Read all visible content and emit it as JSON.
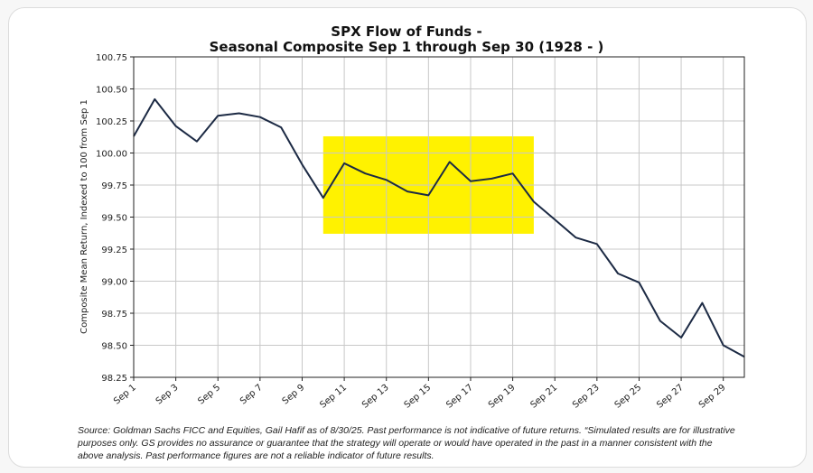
{
  "chart_data": {
    "type": "line",
    "title_line1": "SPX Flow of Funds -",
    "title_line2": "Seasonal Composite Sep 1 through Sep 30 (1928 - )",
    "ylabel": "Composite Mean Return, Indexed to 100 from Sep 1",
    "xlabel": "",
    "ylim": [
      98.25,
      100.75
    ],
    "yticks": [
      "98.25",
      "98.50",
      "98.75",
      "99.00",
      "99.25",
      "99.50",
      "99.75",
      "100.00",
      "100.25",
      "100.50",
      "100.75"
    ],
    "xticks": [
      "Sep 1",
      "Sep 3",
      "Sep 5",
      "Sep 7",
      "Sep 9",
      "Sep 11",
      "Sep 13",
      "Sep 15",
      "Sep 17",
      "Sep 19",
      "Sep 21",
      "Sep 23",
      "Sep 25",
      "Sep 27",
      "Sep 29"
    ],
    "grid": true,
    "line_color": "#1c2a44",
    "highlight": {
      "color": "#fff200",
      "x_start": 10,
      "x_end": 20,
      "y_start": 99.37,
      "y_end": 100.13
    },
    "series": [
      {
        "x": [
          1,
          2,
          3,
          4,
          5,
          6,
          7,
          8,
          9,
          10,
          11,
          12,
          13,
          14,
          15,
          16,
          17,
          18,
          19,
          20,
          21,
          22,
          23,
          24,
          25,
          26,
          27,
          28,
          29,
          30
        ],
        "values": [
          100.13,
          100.42,
          100.21,
          100.09,
          100.29,
          100.31,
          100.28,
          100.2,
          99.91,
          99.65,
          99.92,
          99.84,
          99.79,
          99.7,
          99.67,
          99.93,
          99.78,
          99.8,
          99.84,
          99.62,
          99.48,
          99.34,
          99.29,
          99.06,
          98.99,
          98.69,
          98.56,
          98.83,
          98.5,
          98.41
        ]
      }
    ]
  },
  "source": "Source: Goldman Sachs FICC and Equities, Gail Hafif as of 8/30/25. Past performance is not indicative of future returns. “Simulated results are for illustrative purposes only. GS provides no assurance or guarantee that the strategy will operate or would have operated in the past in a manner consistent with the above analysis. Past performance figures are not a reliable indicator of future results."
}
